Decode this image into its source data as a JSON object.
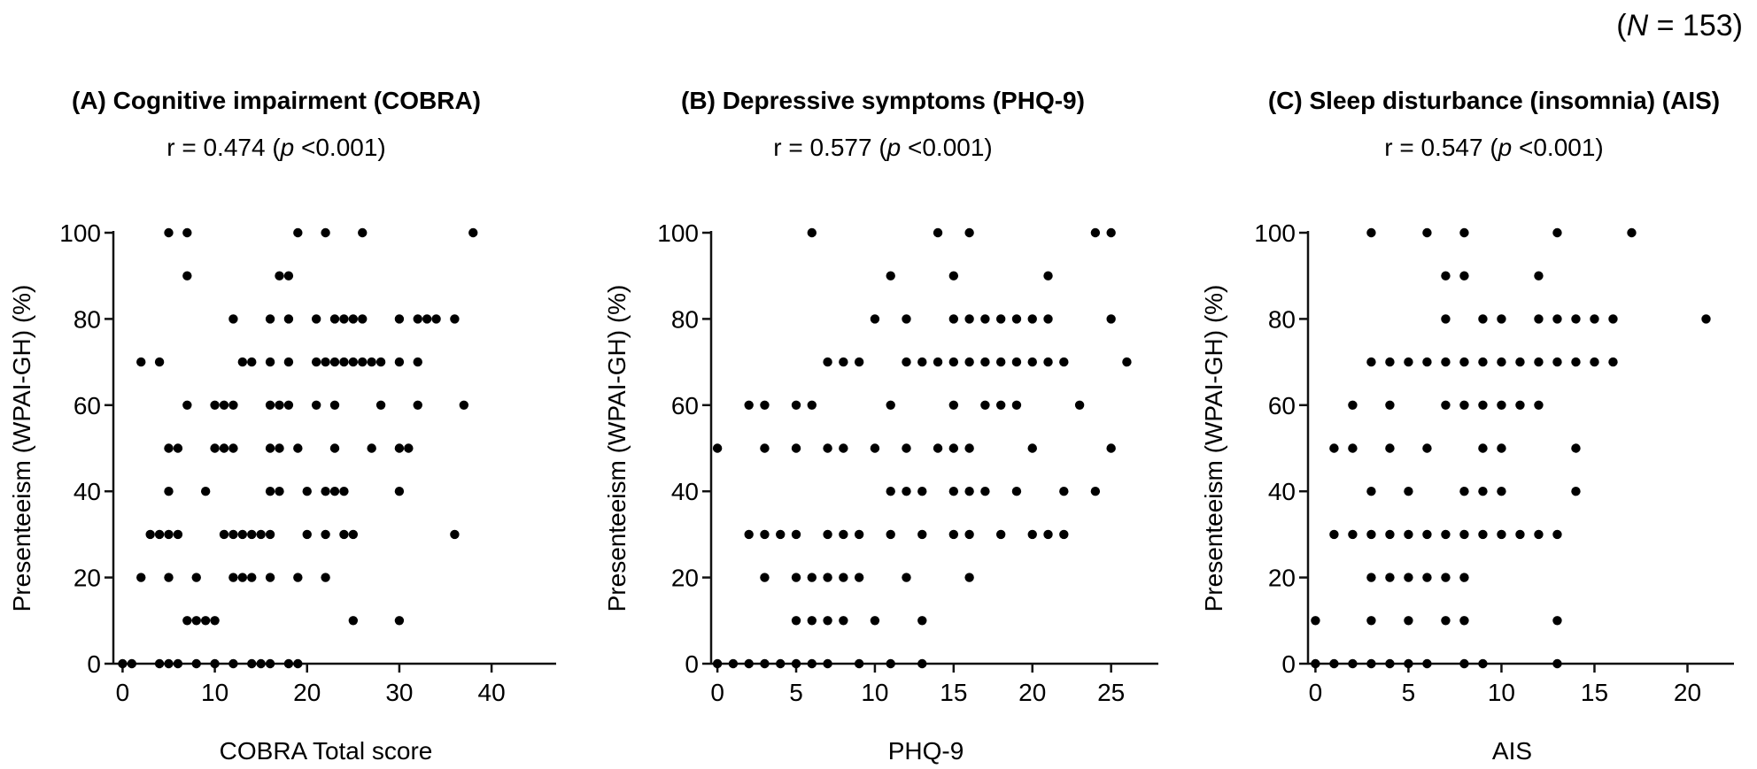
{
  "figure": {
    "n_label_pre": "(",
    "n_label_var": "N",
    "n_label_post": " = 153)"
  },
  "chart_data": [
    {
      "type": "scatter",
      "title": "(A) Cognitive impairment (COBRA)",
      "stat_pre": "r = 0.474 (",
      "stat_p": "p",
      "stat_post": " <0.001)",
      "xlabel": "COBRA Total score",
      "ylabel": "Presenteeism (WPAI-GH) (%)",
      "xlim": [
        -1,
        47
      ],
      "ylim": [
        0,
        100
      ],
      "xticks": [
        0,
        10,
        20,
        30,
        40
      ],
      "yticks": [
        0,
        20,
        40,
        60,
        80,
        100
      ],
      "points": [
        [
          0,
          0
        ],
        [
          1,
          0
        ],
        [
          4,
          0
        ],
        [
          5,
          0
        ],
        [
          6,
          0
        ],
        [
          8,
          0
        ],
        [
          10,
          0
        ],
        [
          12,
          0
        ],
        [
          14,
          0
        ],
        [
          15,
          0
        ],
        [
          16,
          0
        ],
        [
          18,
          0
        ],
        [
          19,
          0
        ],
        [
          7,
          10
        ],
        [
          8,
          10
        ],
        [
          9,
          10
        ],
        [
          10,
          10
        ],
        [
          25,
          10
        ],
        [
          30,
          10
        ],
        [
          2,
          20
        ],
        [
          5,
          20
        ],
        [
          8,
          20
        ],
        [
          12,
          20
        ],
        [
          13,
          20
        ],
        [
          14,
          20
        ],
        [
          16,
          20
        ],
        [
          19,
          20
        ],
        [
          22,
          20
        ],
        [
          3,
          30
        ],
        [
          4,
          30
        ],
        [
          5,
          30
        ],
        [
          6,
          30
        ],
        [
          11,
          30
        ],
        [
          12,
          30
        ],
        [
          13,
          30
        ],
        [
          14,
          30
        ],
        [
          15,
          30
        ],
        [
          16,
          30
        ],
        [
          20,
          30
        ],
        [
          22,
          30
        ],
        [
          24,
          30
        ],
        [
          25,
          30
        ],
        [
          36,
          30
        ],
        [
          5,
          40
        ],
        [
          9,
          40
        ],
        [
          16,
          40
        ],
        [
          17,
          40
        ],
        [
          20,
          40
        ],
        [
          22,
          40
        ],
        [
          23,
          40
        ],
        [
          24,
          40
        ],
        [
          30,
          40
        ],
        [
          5,
          50
        ],
        [
          6,
          50
        ],
        [
          10,
          50
        ],
        [
          11,
          50
        ],
        [
          12,
          50
        ],
        [
          16,
          50
        ],
        [
          17,
          50
        ],
        [
          19,
          50
        ],
        [
          23,
          50
        ],
        [
          27,
          50
        ],
        [
          30,
          50
        ],
        [
          31,
          50
        ],
        [
          7,
          60
        ],
        [
          10,
          60
        ],
        [
          11,
          60
        ],
        [
          12,
          60
        ],
        [
          16,
          60
        ],
        [
          17,
          60
        ],
        [
          18,
          60
        ],
        [
          21,
          60
        ],
        [
          23,
          60
        ],
        [
          28,
          60
        ],
        [
          32,
          60
        ],
        [
          37,
          60
        ],
        [
          2,
          70
        ],
        [
          4,
          70
        ],
        [
          13,
          70
        ],
        [
          14,
          70
        ],
        [
          16,
          70
        ],
        [
          18,
          70
        ],
        [
          21,
          70
        ],
        [
          22,
          70
        ],
        [
          23,
          70
        ],
        [
          24,
          70
        ],
        [
          25,
          70
        ],
        [
          26,
          70
        ],
        [
          27,
          70
        ],
        [
          28,
          70
        ],
        [
          30,
          70
        ],
        [
          32,
          70
        ],
        [
          12,
          80
        ],
        [
          16,
          80
        ],
        [
          18,
          80
        ],
        [
          21,
          80
        ],
        [
          23,
          80
        ],
        [
          24,
          80
        ],
        [
          25,
          80
        ],
        [
          26,
          80
        ],
        [
          30,
          80
        ],
        [
          32,
          80
        ],
        [
          33,
          80
        ],
        [
          34,
          80
        ],
        [
          36,
          80
        ],
        [
          7,
          90
        ],
        [
          17,
          90
        ],
        [
          18,
          90
        ],
        [
          5,
          100
        ],
        [
          7,
          100
        ],
        [
          19,
          100
        ],
        [
          22,
          100
        ],
        [
          26,
          100
        ],
        [
          38,
          100
        ]
      ]
    },
    {
      "type": "scatter",
      "title": "(B) Depressive symptoms (PHQ-9)",
      "stat_pre": "r = 0.577 (",
      "stat_p": "p",
      "stat_post": " <0.001)",
      "xlabel": "PHQ-9",
      "ylabel": "Presenteeism (WPAI-GH) (%)",
      "xlim": [
        -0.4,
        28
      ],
      "ylim": [
        0,
        100
      ],
      "xticks": [
        0,
        5,
        10,
        15,
        20,
        25
      ],
      "yticks": [
        0,
        20,
        40,
        60,
        80,
        100
      ],
      "points": [
        [
          0,
          0
        ],
        [
          1,
          0
        ],
        [
          2,
          0
        ],
        [
          3,
          0
        ],
        [
          4,
          0
        ],
        [
          5,
          0
        ],
        [
          6,
          0
        ],
        [
          7,
          0
        ],
        [
          9,
          0
        ],
        [
          11,
          0
        ],
        [
          13,
          0
        ],
        [
          5,
          10
        ],
        [
          6,
          10
        ],
        [
          7,
          10
        ],
        [
          8,
          10
        ],
        [
          10,
          10
        ],
        [
          13,
          10
        ],
        [
          3,
          20
        ],
        [
          5,
          20
        ],
        [
          6,
          20
        ],
        [
          7,
          20
        ],
        [
          8,
          20
        ],
        [
          9,
          20
        ],
        [
          12,
          20
        ],
        [
          16,
          20
        ],
        [
          2,
          30
        ],
        [
          3,
          30
        ],
        [
          4,
          30
        ],
        [
          5,
          30
        ],
        [
          7,
          30
        ],
        [
          8,
          30
        ],
        [
          9,
          30
        ],
        [
          11,
          30
        ],
        [
          13,
          30
        ],
        [
          15,
          30
        ],
        [
          16,
          30
        ],
        [
          18,
          30
        ],
        [
          20,
          30
        ],
        [
          21,
          30
        ],
        [
          22,
          30
        ],
        [
          11,
          40
        ],
        [
          12,
          40
        ],
        [
          13,
          40
        ],
        [
          15,
          40
        ],
        [
          16,
          40
        ],
        [
          17,
          40
        ],
        [
          19,
          40
        ],
        [
          22,
          40
        ],
        [
          24,
          40
        ],
        [
          0,
          50
        ],
        [
          3,
          50
        ],
        [
          5,
          50
        ],
        [
          7,
          50
        ],
        [
          8,
          50
        ],
        [
          10,
          50
        ],
        [
          12,
          50
        ],
        [
          14,
          50
        ],
        [
          15,
          50
        ],
        [
          16,
          50
        ],
        [
          20,
          50
        ],
        [
          25,
          50
        ],
        [
          2,
          60
        ],
        [
          3,
          60
        ],
        [
          5,
          60
        ],
        [
          6,
          60
        ],
        [
          11,
          60
        ],
        [
          15,
          60
        ],
        [
          17,
          60
        ],
        [
          18,
          60
        ],
        [
          19,
          60
        ],
        [
          23,
          60
        ],
        [
          7,
          70
        ],
        [
          8,
          70
        ],
        [
          9,
          70
        ],
        [
          12,
          70
        ],
        [
          13,
          70
        ],
        [
          14,
          70
        ],
        [
          15,
          70
        ],
        [
          16,
          70
        ],
        [
          17,
          70
        ],
        [
          18,
          70
        ],
        [
          19,
          70
        ],
        [
          20,
          70
        ],
        [
          21,
          70
        ],
        [
          22,
          70
        ],
        [
          26,
          70
        ],
        [
          10,
          80
        ],
        [
          12,
          80
        ],
        [
          15,
          80
        ],
        [
          16,
          80
        ],
        [
          17,
          80
        ],
        [
          18,
          80
        ],
        [
          19,
          80
        ],
        [
          20,
          80
        ],
        [
          21,
          80
        ],
        [
          25,
          80
        ],
        [
          11,
          90
        ],
        [
          15,
          90
        ],
        [
          21,
          90
        ],
        [
          6,
          100
        ],
        [
          14,
          100
        ],
        [
          16,
          100
        ],
        [
          24,
          100
        ],
        [
          25,
          100
        ]
      ]
    },
    {
      "type": "scatter",
      "title": "(C) Sleep disturbance (insomnia) (AIS)",
      "stat_pre": "r = 0.547 (",
      "stat_p": "p",
      "stat_post": " <0.001)",
      "xlabel": "AIS",
      "ylabel": "Presenteeism (WPAI-GH) (%)",
      "xlim": [
        -0.4,
        22.5
      ],
      "ylim": [
        0,
        100
      ],
      "xticks": [
        0,
        5,
        10,
        15,
        20
      ],
      "yticks": [
        0,
        20,
        40,
        60,
        80,
        100
      ],
      "points": [
        [
          0,
          0
        ],
        [
          1,
          0
        ],
        [
          2,
          0
        ],
        [
          3,
          0
        ],
        [
          4,
          0
        ],
        [
          5,
          0
        ],
        [
          6,
          0
        ],
        [
          8,
          0
        ],
        [
          9,
          0
        ],
        [
          13,
          0
        ],
        [
          0,
          10
        ],
        [
          3,
          10
        ],
        [
          5,
          10
        ],
        [
          7,
          10
        ],
        [
          8,
          10
        ],
        [
          13,
          10
        ],
        [
          3,
          20
        ],
        [
          4,
          20
        ],
        [
          5,
          20
        ],
        [
          6,
          20
        ],
        [
          7,
          20
        ],
        [
          8,
          20
        ],
        [
          1,
          30
        ],
        [
          2,
          30
        ],
        [
          3,
          30
        ],
        [
          4,
          30
        ],
        [
          5,
          30
        ],
        [
          6,
          30
        ],
        [
          7,
          30
        ],
        [
          8,
          30
        ],
        [
          9,
          30
        ],
        [
          10,
          30
        ],
        [
          11,
          30
        ],
        [
          12,
          30
        ],
        [
          13,
          30
        ],
        [
          3,
          40
        ],
        [
          5,
          40
        ],
        [
          8,
          40
        ],
        [
          9,
          40
        ],
        [
          10,
          40
        ],
        [
          14,
          40
        ],
        [
          1,
          50
        ],
        [
          2,
          50
        ],
        [
          4,
          50
        ],
        [
          6,
          50
        ],
        [
          9,
          50
        ],
        [
          10,
          50
        ],
        [
          14,
          50
        ],
        [
          2,
          60
        ],
        [
          4,
          60
        ],
        [
          7,
          60
        ],
        [
          8,
          60
        ],
        [
          9,
          60
        ],
        [
          10,
          60
        ],
        [
          11,
          60
        ],
        [
          12,
          60
        ],
        [
          3,
          70
        ],
        [
          4,
          70
        ],
        [
          5,
          70
        ],
        [
          6,
          70
        ],
        [
          7,
          70
        ],
        [
          8,
          70
        ],
        [
          9,
          70
        ],
        [
          10,
          70
        ],
        [
          11,
          70
        ],
        [
          12,
          70
        ],
        [
          13,
          70
        ],
        [
          14,
          70
        ],
        [
          15,
          70
        ],
        [
          16,
          70
        ],
        [
          7,
          80
        ],
        [
          9,
          80
        ],
        [
          10,
          80
        ],
        [
          12,
          80
        ],
        [
          13,
          80
        ],
        [
          14,
          80
        ],
        [
          15,
          80
        ],
        [
          16,
          80
        ],
        [
          21,
          80
        ],
        [
          7,
          90
        ],
        [
          8,
          90
        ],
        [
          12,
          90
        ],
        [
          3,
          100
        ],
        [
          6,
          100
        ],
        [
          8,
          100
        ],
        [
          13,
          100
        ],
        [
          17,
          100
        ]
      ]
    }
  ]
}
